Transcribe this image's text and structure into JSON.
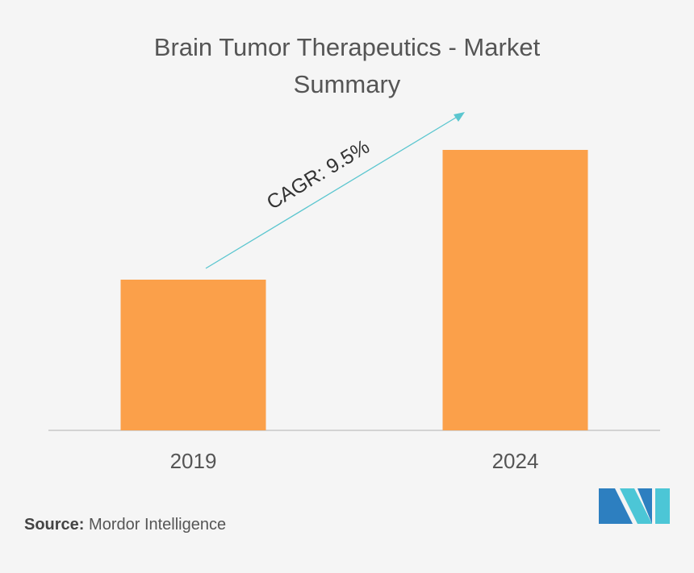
{
  "chart_data": {
    "type": "bar",
    "title": "Brain Tumor Therapeutics - Market Summary",
    "categories": [
      "2019",
      "2024"
    ],
    "values": [
      187,
      348
    ],
    "color": "#fba04a",
    "ylim": [
      0,
      375
    ],
    "annotation": "CAGR: 9.5%",
    "source_label": "Source:",
    "source": "Mordor Intelligence"
  }
}
